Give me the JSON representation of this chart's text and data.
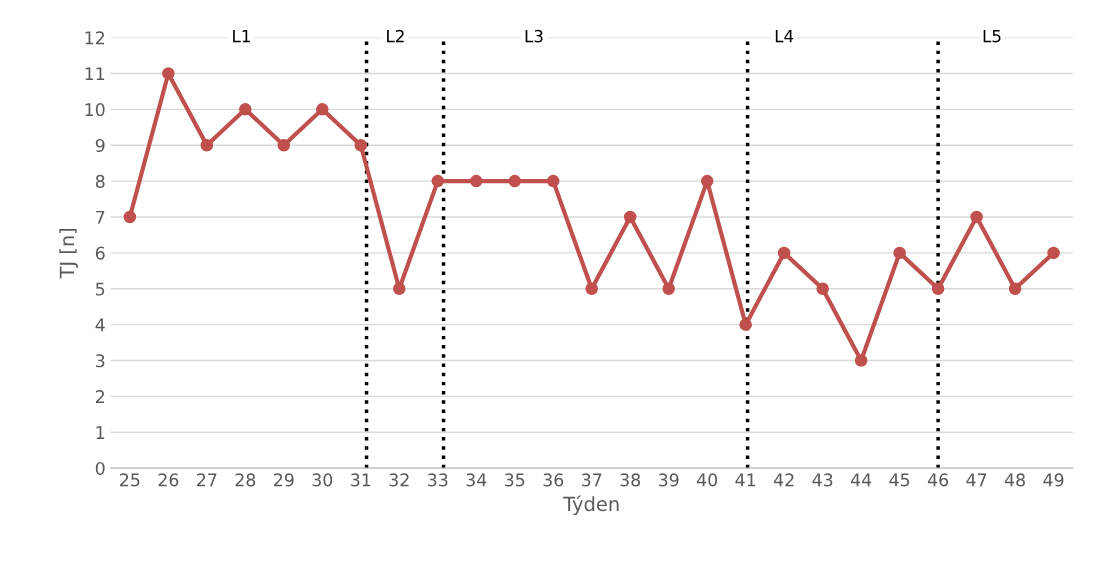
{
  "chart_data": {
    "type": "line",
    "xlabel": "Týden",
    "ylabel": "TJ [n]",
    "x": [
      25,
      26,
      27,
      28,
      29,
      30,
      31,
      32,
      33,
      34,
      35,
      36,
      37,
      38,
      39,
      40,
      41,
      42,
      43,
      44,
      45,
      46,
      47,
      48,
      49
    ],
    "series": [
      {
        "color": "#c0504d",
        "values": [
          7,
          11,
          9,
          10,
          9,
          10,
          9,
          5,
          8,
          8,
          8,
          8,
          5,
          7,
          5,
          8,
          4,
          6,
          5,
          3,
          6,
          5,
          7,
          5,
          6
        ]
      }
    ],
    "xlim": [
      24.5,
      49.5
    ],
    "xticks": [
      25,
      26,
      27,
      28,
      29,
      30,
      31,
      32,
      33,
      34,
      35,
      36,
      37,
      38,
      39,
      40,
      41,
      42,
      43,
      44,
      45,
      46,
      47,
      48,
      49
    ],
    "ylim": [
      0,
      12
    ],
    "yticks": [
      0,
      1,
      2,
      3,
      4,
      5,
      6,
      7,
      8,
      9,
      10,
      11,
      12
    ],
    "ref_lines": [
      {
        "axis": "x",
        "value": 31.15,
        "color": "#000000",
        "line_style": "dotted"
      },
      {
        "axis": "x",
        "value": 33.15,
        "color": "#000000",
        "line_style": "dotted"
      },
      {
        "axis": "x",
        "value": 41.05,
        "color": "#000000",
        "line_style": "dotted"
      },
      {
        "axis": "x",
        "value": 46.0,
        "color": "#000000",
        "line_style": "dotted"
      }
    ],
    "annotations": [
      {
        "text": "L1",
        "x": 27.9,
        "y": 12
      },
      {
        "text": "L2",
        "x": 31.9,
        "y": 12
      },
      {
        "text": "L3",
        "x": 35.5,
        "y": 12
      },
      {
        "text": "L4",
        "x": 42.0,
        "y": 12
      },
      {
        "text": "L5",
        "x": 47.4,
        "y": 12
      }
    ],
    "grid": "y",
    "marker": "circle",
    "line_style": "solid",
    "legend": false
  }
}
